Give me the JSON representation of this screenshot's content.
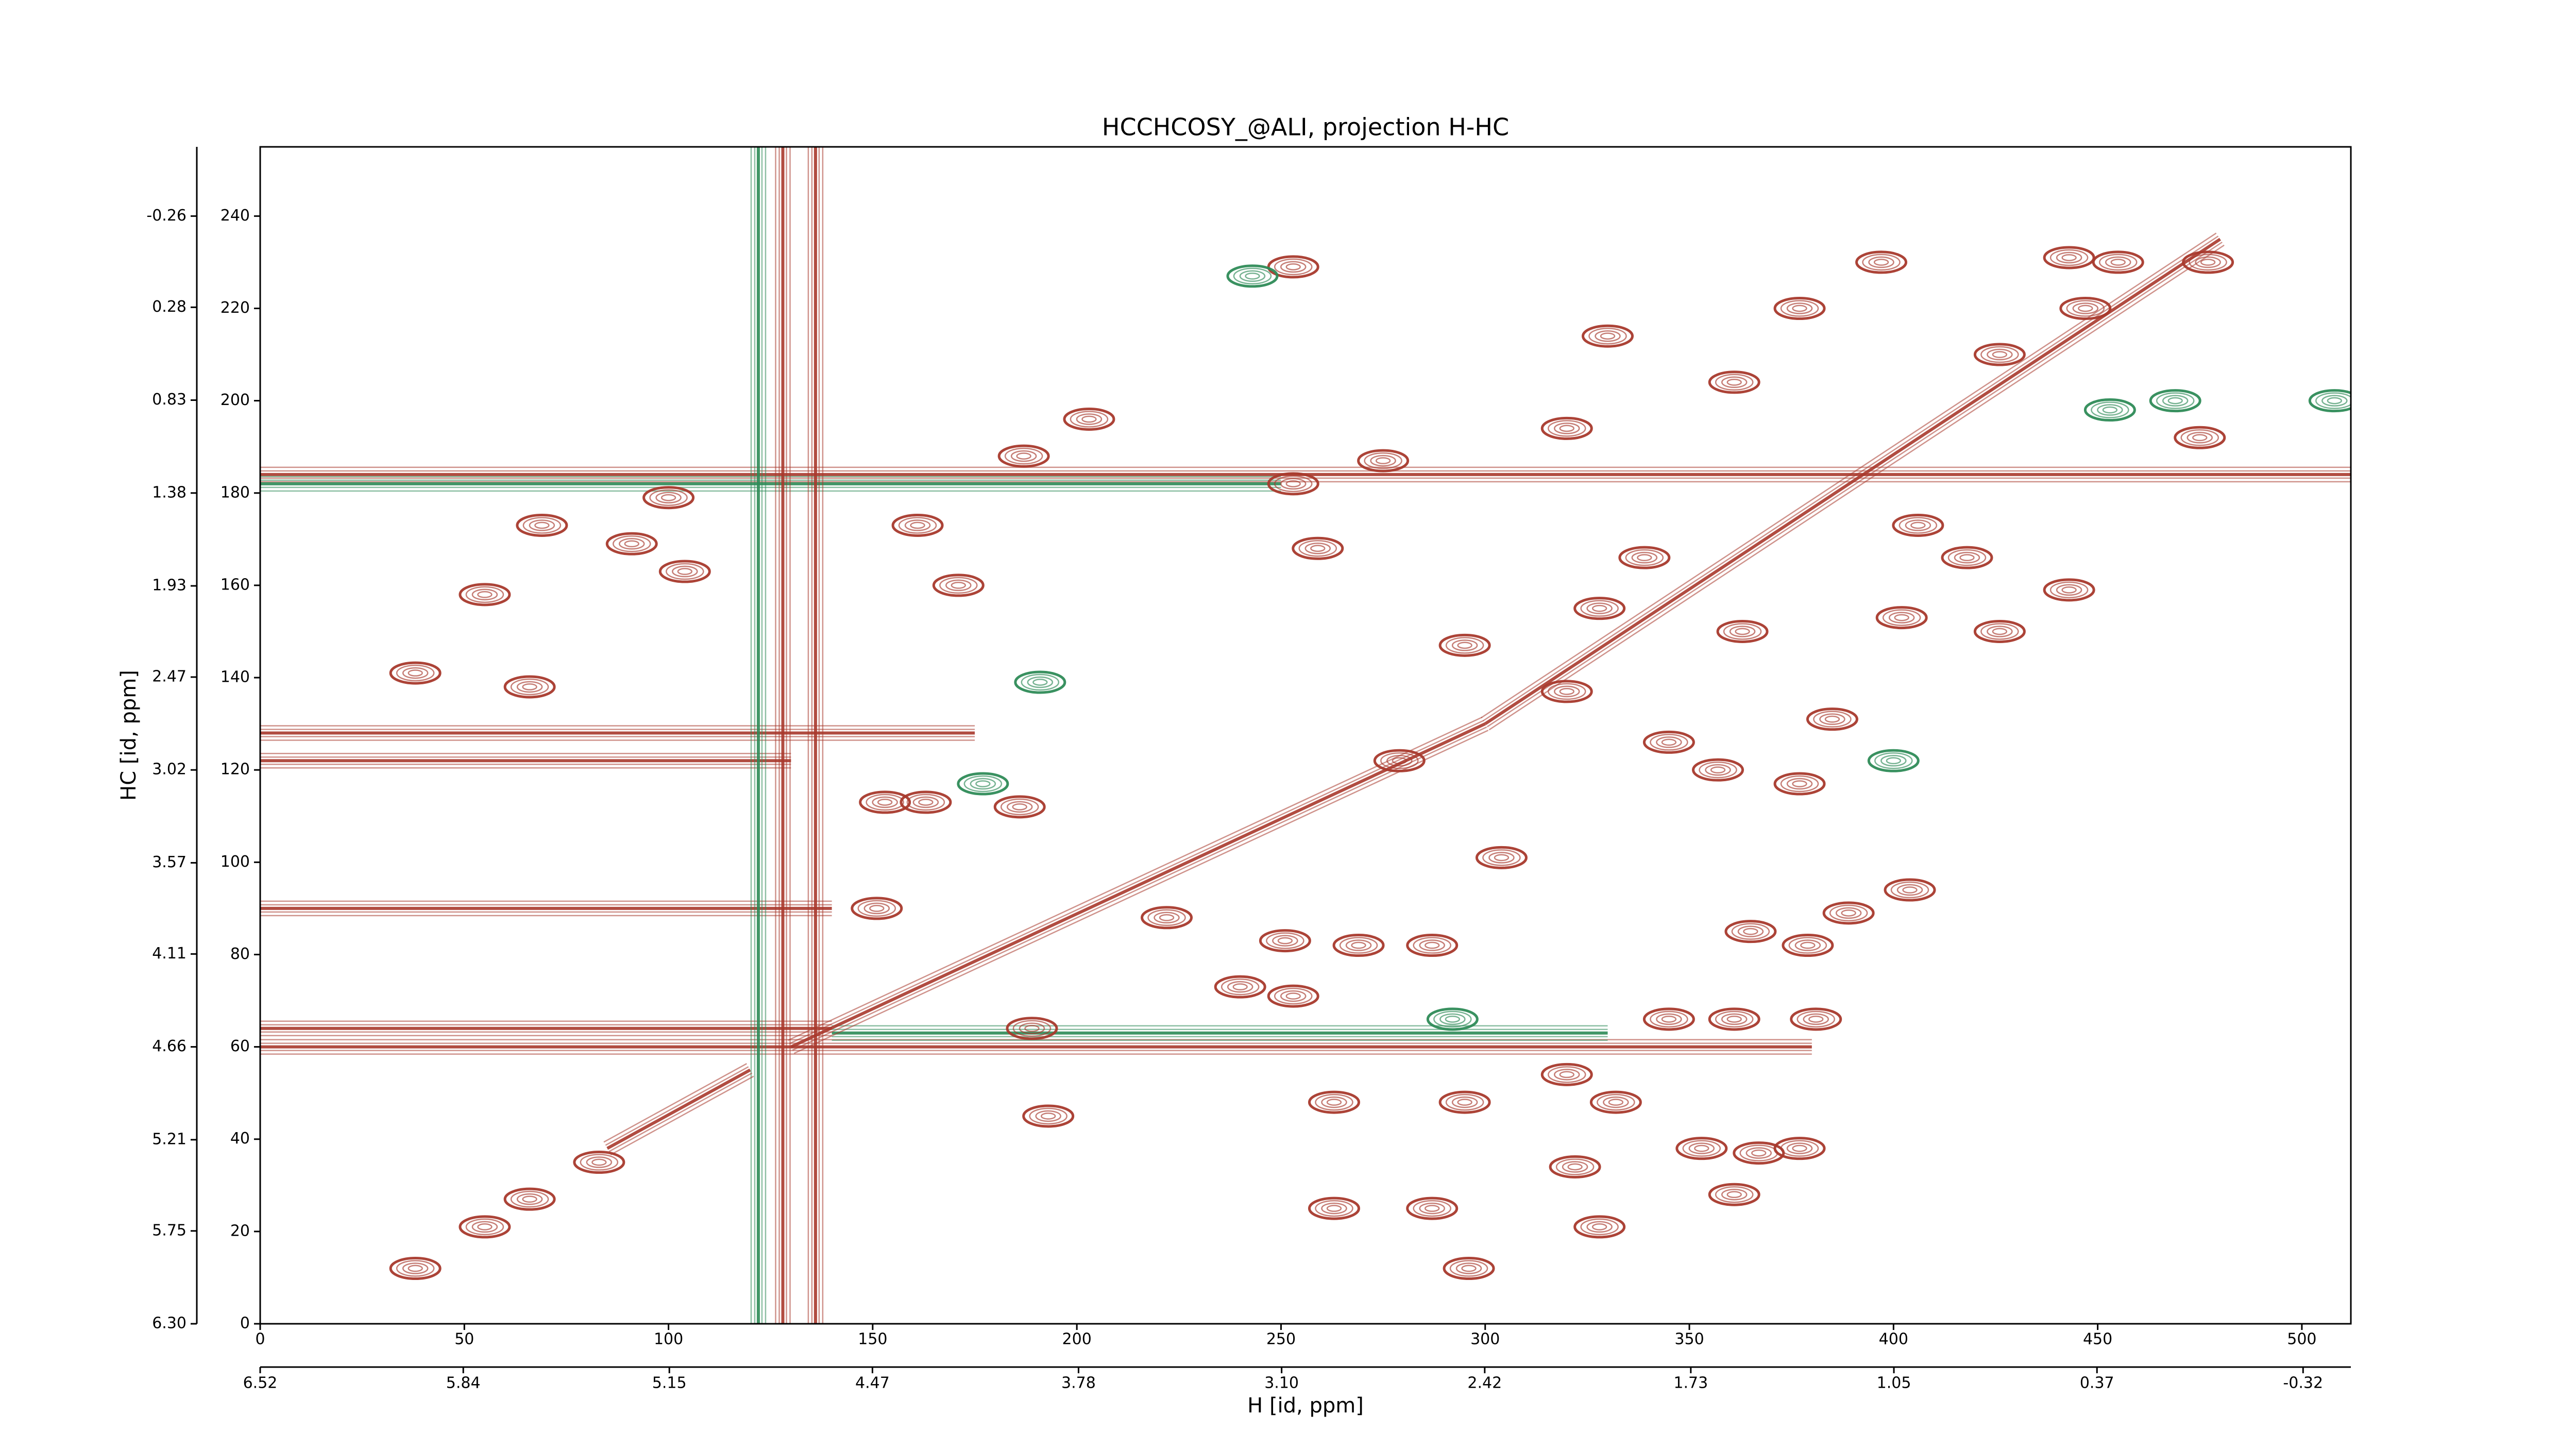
{
  "chart_data": {
    "type": "contour",
    "title": "HCCHCOSY_@ALI, projection H-HC",
    "xlabel": "H [id, ppm]",
    "ylabel": "HC [id, ppm]",
    "xlim": [
      0,
      512
    ],
    "ylim": [
      0,
      255
    ],
    "xticks": [
      0,
      50,
      100,
      150,
      200,
      250,
      300,
      350,
      400,
      450,
      500
    ],
    "yticks": [
      0,
      20,
      40,
      60,
      80,
      100,
      120,
      140,
      160,
      180,
      200,
      220,
      240
    ],
    "x2lim": [
      6.52,
      -0.48
    ],
    "x2ticks": [
      {
        "value": 6.52,
        "label": "6.52"
      },
      {
        "value": 5.84,
        "label": "5.84"
      },
      {
        "value": 5.15,
        "label": "5.15"
      },
      {
        "value": 4.47,
        "label": "4.47"
      },
      {
        "value": 3.78,
        "label": "3.78"
      },
      {
        "value": 3.1,
        "label": "3.10"
      },
      {
        "value": 2.42,
        "label": "2.42"
      },
      {
        "value": 1.73,
        "label": "1.73"
      },
      {
        "value": 1.05,
        "label": "1.05"
      },
      {
        "value": 0.37,
        "label": "0.37"
      },
      {
        "value": -0.32,
        "label": "-0.32"
      }
    ],
    "y2lim": [
      6.3,
      -0.67
    ],
    "y2ticks": [
      {
        "value": 6.3,
        "label": "6.30"
      },
      5.75,
      5.21,
      4.66,
      4.11,
      3.57,
      3.02,
      2.47,
      1.93,
      1.38,
      0.83,
      0.28,
      -0.26
    ],
    "peaks": {
      "color": "#a8392c",
      "x": [
        38,
        55,
        66,
        83,
        55,
        66,
        38,
        69,
        91,
        104,
        153,
        163,
        151,
        171,
        161,
        187,
        203,
        193,
        189,
        186,
        222,
        240,
        253,
        251,
        269,
        287,
        263,
        287,
        296,
        328,
        322,
        361,
        295,
        263,
        320,
        332,
        353,
        367,
        377,
        345,
        361,
        381,
        365,
        379,
        389,
        404,
        357,
        345,
        377,
        385,
        304,
        320,
        295,
        363,
        402,
        426,
        443,
        418,
        406,
        320,
        330,
        377,
        397,
        443,
        455,
        477,
        475,
        426,
        447,
        361,
        259,
        253,
        275,
        100,
        253,
        339,
        328,
        279
      ],
      "y": [
        12,
        21,
        27,
        35,
        158,
        138,
        141,
        173,
        169,
        163,
        113,
        113,
        90,
        160,
        173,
        188,
        196,
        45,
        64,
        112,
        88,
        73,
        71,
        83,
        82,
        82,
        25,
        25,
        12,
        21,
        34,
        28,
        48,
        48,
        54,
        48,
        38,
        37,
        38,
        66,
        66,
        66,
        85,
        82,
        89,
        94,
        120,
        126,
        117,
        131,
        101,
        137,
        147,
        150,
        153,
        150,
        159,
        166,
        173,
        194,
        214,
        220,
        230,
        231,
        230,
        230,
        192,
        210,
        220,
        204,
        168,
        182,
        187,
        179,
        229,
        166,
        155,
        122
      ]
    },
    "neg_peaks": {
      "color": "#2e8b57",
      "x": [
        453,
        469,
        400,
        292,
        177,
        191,
        243,
        508
      ],
      "y": [
        198,
        200,
        122,
        66,
        117,
        139,
        227,
        200
      ]
    },
    "ridges": [
      {
        "x": [
          0,
          512
        ],
        "y": [
          184,
          184
        ],
        "color": "#a8392c"
      },
      {
        "x": [
          0,
          250
        ],
        "y": [
          182,
          182
        ],
        "color": "#2e8b57"
      },
      {
        "x": [
          0,
          380
        ],
        "y": [
          60,
          60
        ],
        "color": "#a8392c"
      },
      {
        "x": [
          0,
          140
        ],
        "y": [
          64,
          64
        ],
        "color": "#a8392c"
      },
      {
        "x": [
          140,
          330
        ],
        "y": [
          63,
          63
        ],
        "color": "#2e8b57"
      },
      {
        "x": [
          0,
          175
        ],
        "y": [
          128,
          128
        ],
        "color": "#a8392c"
      },
      {
        "x": [
          0,
          130
        ],
        "y": [
          122,
          122
        ],
        "color": "#a8392c"
      },
      {
        "x": [
          0,
          140
        ],
        "y": [
          90,
          90
        ],
        "color": "#a8392c"
      },
      {
        "x": [
          122,
          122
        ],
        "y": [
          0,
          255
        ],
        "color": "#2e8b57"
      },
      {
        "x": [
          128,
          128
        ],
        "y": [
          0,
          255
        ],
        "color": "#a8392c"
      },
      {
        "x": [
          136,
          136
        ],
        "y": [
          0,
          255
        ],
        "color": "#a8392c"
      },
      {
        "x": [
          85,
          120
        ],
        "y": [
          38,
          55
        ],
        "color": "#a8392c"
      },
      {
        "x": [
          130,
          300
        ],
        "y": [
          60,
          130
        ],
        "color": "#a8392c"
      },
      {
        "x": [
          300,
          480
        ],
        "y": [
          130,
          235
        ],
        "color": "#a8392c"
      }
    ]
  }
}
